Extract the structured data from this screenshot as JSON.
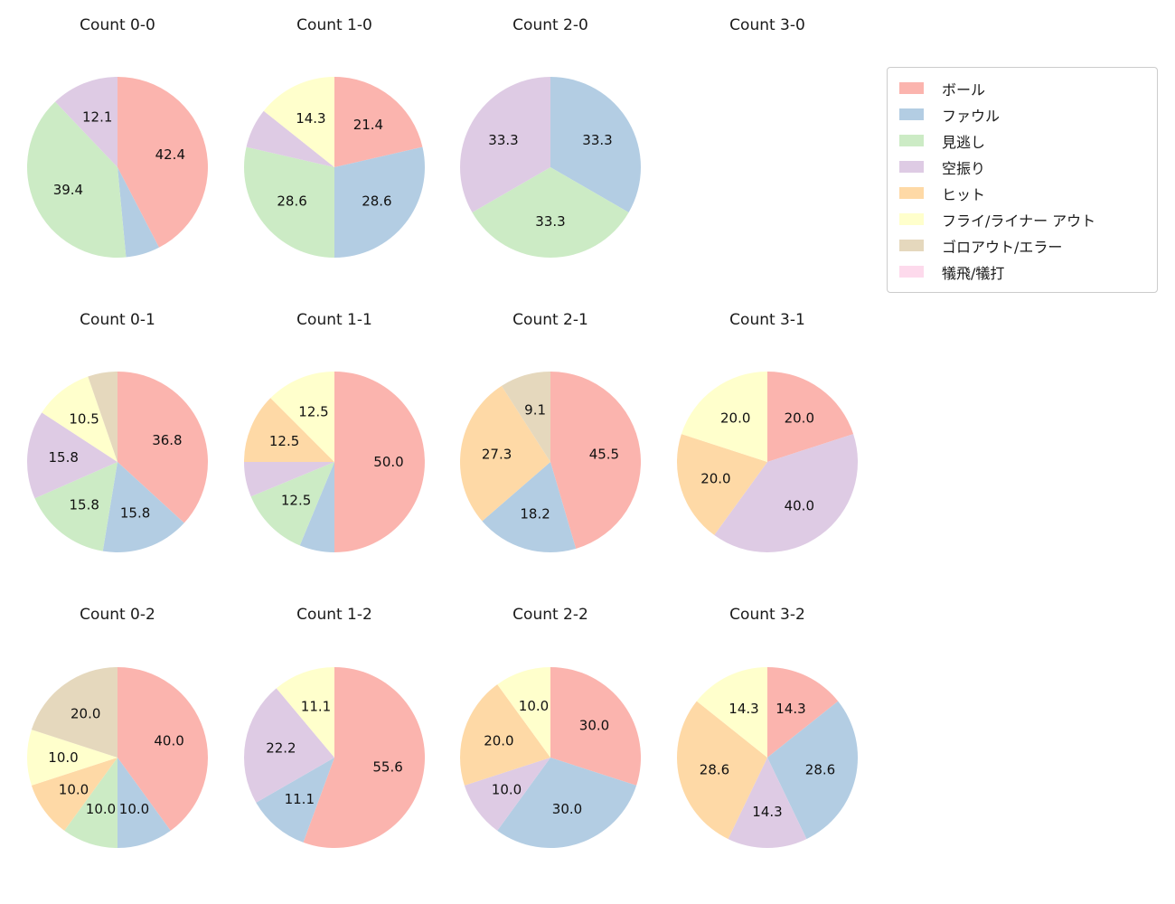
{
  "background": "#ffffff",
  "text_color": "#1a1a1a",
  "palette": {
    "ball": "#fbb4ae",
    "foul": "#b3cde3",
    "looking": "#ccebc5",
    "swinging": "#decbe4",
    "hit": "#fed9a6",
    "fly_out": "#ffffcc",
    "ground_out": "#e5d8bd",
    "sacrifice": "#fddaec"
  },
  "legend": {
    "items": [
      {
        "label": "ボール",
        "color": "#fbb4ae"
      },
      {
        "label": "ファウル",
        "color": "#b3cde3"
      },
      {
        "label": "見逃し",
        "color": "#ccebc5"
      },
      {
        "label": "空振り",
        "color": "#decbe4"
      },
      {
        "label": "ヒット",
        "color": "#fed9a6"
      },
      {
        "label": "フライ/ライナー アウト",
        "color": "#ffffcc"
      },
      {
        "label": "ゴロアウト/エラー",
        "color": "#e5d8bd"
      },
      {
        "label": "犠飛/犠打",
        "color": "#fddaec"
      }
    ]
  },
  "pie_style": {
    "start_angle": 90,
    "direction": "clockwise",
    "label_radius_ratio": 0.6
  },
  "chart_data": [
    {
      "type": "pie",
      "title": "Count 0-0",
      "slices": [
        {
          "category": "ボール",
          "value": 42.4,
          "label": "42.4",
          "color": "#fbb4ae"
        },
        {
          "category": "ファウル",
          "value": 6.1,
          "label": "",
          "color": "#b3cde3"
        },
        {
          "category": "見逃し",
          "value": 39.4,
          "label": "39.4",
          "color": "#ccebc5"
        },
        {
          "category": "空振り",
          "value": 12.1,
          "label": "12.1",
          "color": "#decbe4"
        }
      ]
    },
    {
      "type": "pie",
      "title": "Count 1-0",
      "slices": [
        {
          "category": "ボール",
          "value": 21.4,
          "label": "21.4",
          "color": "#fbb4ae"
        },
        {
          "category": "ファウル",
          "value": 28.6,
          "label": "28.6",
          "color": "#b3cde3"
        },
        {
          "category": "見逃し",
          "value": 28.6,
          "label": "28.6",
          "color": "#ccebc5"
        },
        {
          "category": "空振り",
          "value": 7.1,
          "label": "",
          "color": "#decbe4"
        },
        {
          "category": "フライ/ライナー アウト",
          "value": 14.3,
          "label": "14.3",
          "color": "#ffffcc"
        }
      ]
    },
    {
      "type": "pie",
      "title": "Count 2-0",
      "slices": [
        {
          "category": "ファウル",
          "value": 33.3,
          "label": "33.3",
          "color": "#b3cde3"
        },
        {
          "category": "見逃し",
          "value": 33.3,
          "label": "33.3",
          "color": "#ccebc5"
        },
        {
          "category": "空振り",
          "value": 33.3,
          "label": "33.3",
          "color": "#decbe4"
        }
      ]
    },
    {
      "type": "pie",
      "title": "Count 3-0",
      "slices": []
    },
    {
      "type": "pie",
      "title": "Count 0-1",
      "slices": [
        {
          "category": "ボール",
          "value": 36.8,
          "label": "36.8",
          "color": "#fbb4ae"
        },
        {
          "category": "ファウル",
          "value": 15.8,
          "label": "15.8",
          "color": "#b3cde3"
        },
        {
          "category": "見逃し",
          "value": 15.8,
          "label": "15.8",
          "color": "#ccebc5"
        },
        {
          "category": "空振り",
          "value": 15.8,
          "label": "15.8",
          "color": "#decbe4"
        },
        {
          "category": "フライ/ライナー アウト",
          "value": 10.5,
          "label": "10.5",
          "color": "#ffffcc"
        },
        {
          "category": "ゴロアウト/エラー",
          "value": 5.3,
          "label": "",
          "color": "#e5d8bd"
        }
      ]
    },
    {
      "type": "pie",
      "title": "Count 1-1",
      "slices": [
        {
          "category": "ボール",
          "value": 50.0,
          "label": "50.0",
          "color": "#fbb4ae"
        },
        {
          "category": "ファウル",
          "value": 6.25,
          "label": "",
          "color": "#b3cde3"
        },
        {
          "category": "見逃し",
          "value": 12.5,
          "label": "12.5",
          "color": "#ccebc5"
        },
        {
          "category": "空振り",
          "value": 6.25,
          "label": "",
          "color": "#decbe4"
        },
        {
          "category": "ヒット",
          "value": 12.5,
          "label": "12.5",
          "color": "#fed9a6"
        },
        {
          "category": "フライ/ライナー アウト",
          "value": 12.5,
          "label": "12.5",
          "color": "#ffffcc"
        }
      ]
    },
    {
      "type": "pie",
      "title": "Count 2-1",
      "slices": [
        {
          "category": "ボール",
          "value": 45.5,
          "label": "45.5",
          "color": "#fbb4ae"
        },
        {
          "category": "ファウル",
          "value": 18.2,
          "label": "18.2",
          "color": "#b3cde3"
        },
        {
          "category": "ヒット",
          "value": 27.3,
          "label": "27.3",
          "color": "#fed9a6"
        },
        {
          "category": "ゴロアウト/エラー",
          "value": 9.1,
          "label": "9.1",
          "color": "#e5d8bd"
        }
      ]
    },
    {
      "type": "pie",
      "title": "Count 3-1",
      "slices": [
        {
          "category": "ボール",
          "value": 20.0,
          "label": "20.0",
          "color": "#fbb4ae"
        },
        {
          "category": "空振り",
          "value": 40.0,
          "label": "40.0",
          "color": "#decbe4"
        },
        {
          "category": "ヒット",
          "value": 20.0,
          "label": "20.0",
          "color": "#fed9a6"
        },
        {
          "category": "フライ/ライナー アウト",
          "value": 20.0,
          "label": "20.0",
          "color": "#ffffcc"
        }
      ]
    },
    {
      "type": "pie",
      "title": "Count 0-2",
      "slices": [
        {
          "category": "ボール",
          "value": 40.0,
          "label": "40.0",
          "color": "#fbb4ae"
        },
        {
          "category": "ファウル",
          "value": 10.0,
          "label": "10.0",
          "color": "#b3cde3"
        },
        {
          "category": "見逃し",
          "value": 10.0,
          "label": "10.0",
          "color": "#ccebc5"
        },
        {
          "category": "ヒット",
          "value": 10.0,
          "label": "10.0",
          "color": "#fed9a6"
        },
        {
          "category": "フライ/ライナー アウト",
          "value": 10.0,
          "label": "10.0",
          "color": "#ffffcc"
        },
        {
          "category": "ゴロアウト/エラー",
          "value": 20.0,
          "label": "20.0",
          "color": "#e5d8bd"
        }
      ]
    },
    {
      "type": "pie",
      "title": "Count 1-2",
      "slices": [
        {
          "category": "ボール",
          "value": 55.6,
          "label": "55.6",
          "color": "#fbb4ae"
        },
        {
          "category": "ファウル",
          "value": 11.1,
          "label": "11.1",
          "color": "#b3cde3"
        },
        {
          "category": "空振り",
          "value": 22.2,
          "label": "22.2",
          "color": "#decbe4"
        },
        {
          "category": "フライ/ライナー アウト",
          "value": 11.1,
          "label": "11.1",
          "color": "#ffffcc"
        }
      ]
    },
    {
      "type": "pie",
      "title": "Count 2-2",
      "slices": [
        {
          "category": "ボール",
          "value": 30.0,
          "label": "30.0",
          "color": "#fbb4ae"
        },
        {
          "category": "ファウル",
          "value": 30.0,
          "label": "30.0",
          "color": "#b3cde3"
        },
        {
          "category": "空振り",
          "value": 10.0,
          "label": "10.0",
          "color": "#decbe4"
        },
        {
          "category": "ヒット",
          "value": 20.0,
          "label": "20.0",
          "color": "#fed9a6"
        },
        {
          "category": "フライ/ライナー アウト",
          "value": 10.0,
          "label": "10.0",
          "color": "#ffffcc"
        }
      ]
    },
    {
      "type": "pie",
      "title": "Count 3-2",
      "slices": [
        {
          "category": "ボール",
          "value": 14.3,
          "label": "14.3",
          "color": "#fbb4ae"
        },
        {
          "category": "ファウル",
          "value": 28.6,
          "label": "28.6",
          "color": "#b3cde3"
        },
        {
          "category": "空振り",
          "value": 14.3,
          "label": "14.3",
          "color": "#decbe4"
        },
        {
          "category": "ヒット",
          "value": 28.6,
          "label": "28.6",
          "color": "#fed9a6"
        },
        {
          "category": "フライ/ライナー アウト",
          "value": 14.3,
          "label": "14.3",
          "color": "#ffffcc"
        }
      ]
    }
  ]
}
